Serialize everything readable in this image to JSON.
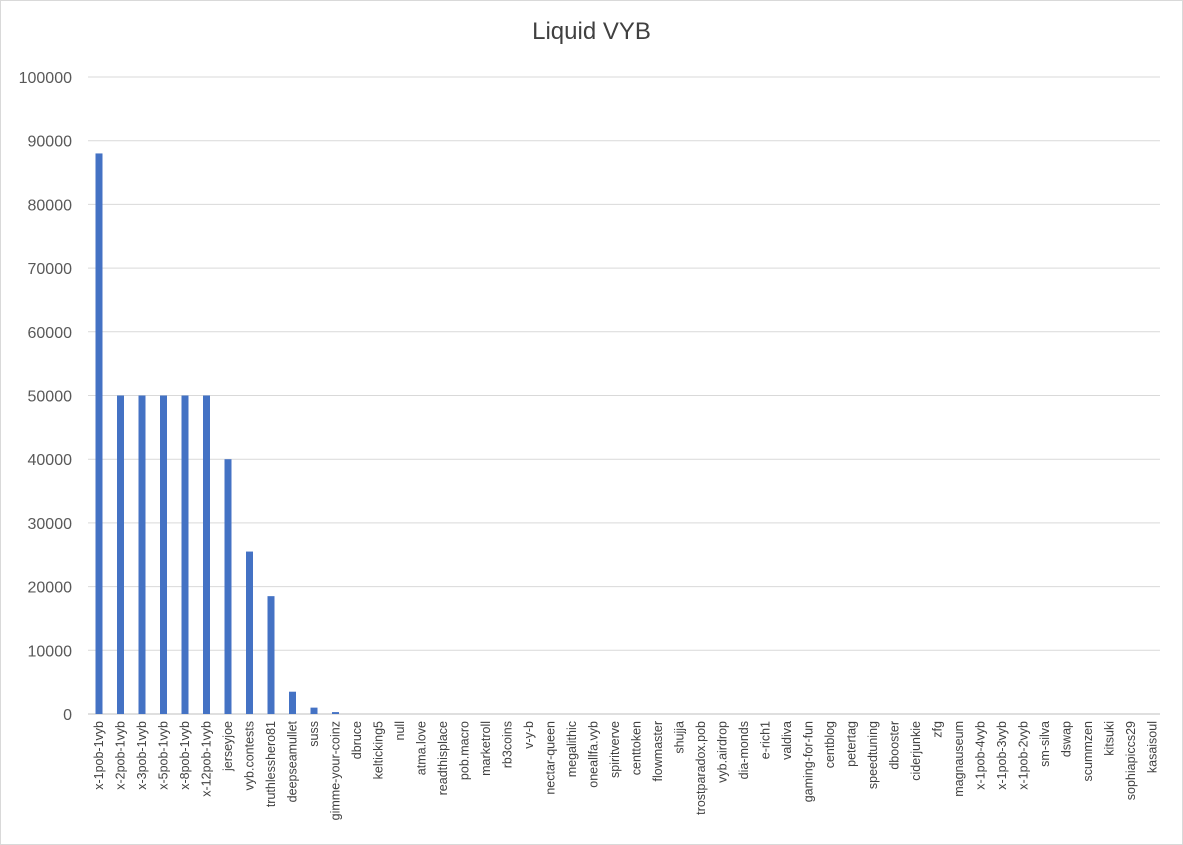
{
  "chart_data": {
    "type": "bar",
    "title": "Liquid VYB",
    "xlabel": "",
    "ylabel": "",
    "ylim": [
      0,
      100000
    ],
    "yticks": [
      0,
      10000,
      20000,
      30000,
      40000,
      50000,
      60000,
      70000,
      80000,
      90000,
      100000
    ],
    "grid": true,
    "legend": "none",
    "bar_color": "#4472c4",
    "categories": [
      "x-1pob-1vyb",
      "x-2pob-1vyb",
      "x-3pob-1vyb",
      "x-5pob-1vyb",
      "x-8pob-1vyb",
      "x-12pob-1vyb",
      "jerseyjoe",
      "vyb.contests",
      "truthlesshero81",
      "deepseamullet",
      "suss",
      "gimme-your-coinz",
      "dbruce",
      "kelticking5",
      "null",
      "atma.love",
      "readthisplace",
      "pob.macro",
      "marketroll",
      "rb3coins",
      "v-y-b",
      "nectar-queen",
      "megalithic",
      "oneallfa.vyb",
      "spiritverve",
      "centtoken",
      "flowmaster",
      "shujja",
      "trostparadox.pob",
      "vyb.airdrop",
      "dia-monds",
      "e-rich1",
      "valdiva",
      "gaming-for-fun",
      "centblog",
      "petertag",
      "speedtuning",
      "dbooster",
      "ciderjunkie",
      "zfg",
      "magnauseum",
      "x-1pob-4vyb",
      "x-1pob-3vyb",
      "x-1pob-2vyb",
      "sm-silva",
      "dswap",
      "scummzen",
      "kitsuki",
      "sophiapiccs29",
      "kasaisoul"
    ],
    "values": [
      88000,
      50000,
      50000,
      50000,
      50000,
      50000,
      40000,
      25500,
      18500,
      3500,
      1000,
      300,
      0,
      0,
      0,
      0,
      0,
      0,
      0,
      0,
      0,
      0,
      0,
      0,
      0,
      0,
      0,
      0,
      0,
      0,
      0,
      0,
      0,
      0,
      0,
      0,
      0,
      0,
      0,
      0,
      0,
      0,
      0,
      0,
      0,
      0,
      0,
      0,
      0,
      0
    ]
  }
}
